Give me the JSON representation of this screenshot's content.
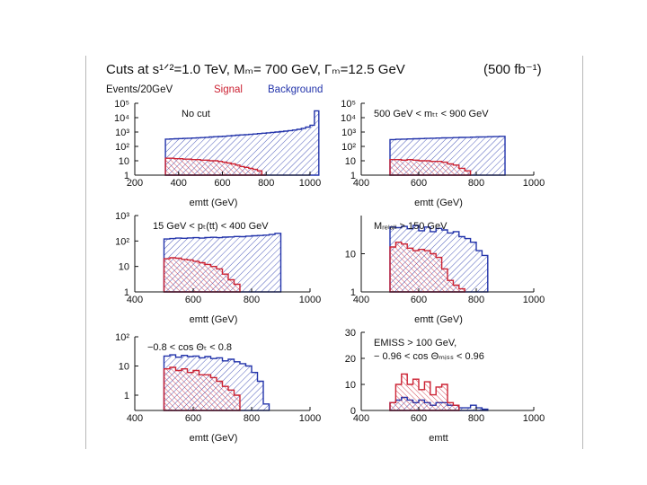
{
  "header": {
    "title": "Cuts at s¹ᐟ²=1.0 TeV,  Mₘ= 700 GeV, Γₘ=12.5 GeV",
    "luminosity": "(500 fb⁻¹)"
  },
  "legend": {
    "yunit": "Events/20GeV",
    "signal": "Signal",
    "background": "Background"
  },
  "colors": {
    "signal": "#cc2233",
    "background": "#2233aa",
    "axis": "#111111"
  },
  "chart_data": [
    {
      "type": "histogram",
      "scale": "log",
      "annotation": "No cut",
      "xlabel": "emtt (GeV)",
      "xlim": [
        200,
        1000
      ],
      "ylim": [
        1,
        100000
      ],
      "xticks": [
        "200",
        "400",
        "600",
        "800",
        "1000"
      ],
      "yticks": [
        "1",
        "10",
        "10²",
        "10³",
        "10⁴",
        "10⁵"
      ],
      "bin_width": 20,
      "background": {
        "x_start": 340,
        "values": [
          320,
          330,
          340,
          350,
          360,
          370,
          380,
          400,
          410,
          430,
          450,
          470,
          490,
          510,
          540,
          570,
          600,
          630,
          660,
          690,
          730,
          780,
          830,
          880,
          940,
          1000,
          1070,
          1150,
          1250,
          1380,
          1550,
          1800,
          2200,
          3000,
          30000
        ]
      },
      "signal": {
        "x_start": 340,
        "values": [
          15,
          15,
          14,
          14,
          13,
          13,
          12,
          12,
          11,
          11,
          10,
          10,
          9,
          8,
          7,
          6,
          5,
          4,
          3.5,
          3,
          2.5,
          2,
          1
        ]
      }
    },
    {
      "type": "histogram",
      "scale": "log",
      "annotation": "500 GeV < mₜₜ < 900 GeV",
      "xlabel": "emtt (GeV)",
      "xlim": [
        400,
        1000
      ],
      "ylim": [
        1,
        100000
      ],
      "xticks": [
        "400",
        "600",
        "800",
        "1000"
      ],
      "yticks": [
        "1",
        "10",
        "10²",
        "10³",
        "10⁴",
        "10⁵"
      ],
      "bin_width": 20,
      "background": {
        "x_start": 500,
        "values": [
          300,
          310,
          320,
          330,
          340,
          350,
          360,
          370,
          380,
          390,
          400,
          410,
          420,
          430,
          440,
          450,
          460,
          470,
          480,
          500
        ]
      },
      "signal": {
        "x_start": 500,
        "values": [
          12,
          12,
          11,
          12,
          11,
          10,
          10,
          9,
          9,
          8,
          6,
          5,
          3,
          2
        ]
      }
    },
    {
      "type": "histogram",
      "scale": "log",
      "annotation": "15 GeV < pₜ(tt) < 400 GeV",
      "xlabel": "emtt (GeV)",
      "xlim": [
        400,
        1000
      ],
      "ylim": [
        1,
        1000
      ],
      "xticks": [
        "400",
        "600",
        "800",
        "1000"
      ],
      "yticks": [
        "1",
        "10",
        "10²",
        "10³"
      ],
      "bin_width": 20,
      "background": {
        "x_start": 500,
        "values": [
          120,
          125,
          130,
          128,
          132,
          135,
          130,
          138,
          140,
          135,
          142,
          145,
          150,
          148,
          155,
          160,
          165,
          170,
          180,
          200
        ]
      },
      "signal": {
        "x_start": 500,
        "values": [
          20,
          22,
          21,
          19,
          18,
          16,
          14,
          12,
          10,
          8,
          5,
          3,
          2
        ]
      }
    },
    {
      "type": "histogram",
      "scale": "log",
      "annotation": "Mᵣₑₗₐₗₗ > 150 GeV",
      "xlabel": "emtt (GeV)",
      "xlim": [
        400,
        1000
      ],
      "ylim": [
        1,
        100
      ],
      "xticks": [
        "400",
        "600",
        "800",
        "1000"
      ],
      "yticks": [
        "1",
        "10"
      ],
      "bin_width": 20,
      "background": {
        "x_start": 500,
        "values": [
          50,
          48,
          52,
          45,
          55,
          40,
          50,
          38,
          46,
          42,
          35,
          38,
          28,
          25,
          20,
          12,
          9
        ]
      },
      "signal": {
        "x_start": 500,
        "values": [
          15,
          20,
          18,
          14,
          12,
          13,
          12,
          10,
          8,
          4,
          2,
          1.5,
          1.2
        ]
      }
    },
    {
      "type": "histogram",
      "scale": "log",
      "annotation": "−0.8 < cos Θₜ < 0.8",
      "xlabel": "emtt (GeV)",
      "xlim": [
        400,
        1000
      ],
      "ylim": [
        0.3,
        100
      ],
      "xticks": [
        "400",
        "600",
        "800",
        "1000"
      ],
      "yticks": [
        "1",
        "10",
        "10²"
      ],
      "bin_width": 20,
      "background": {
        "x_start": 500,
        "values": [
          22,
          24,
          20,
          23,
          21,
          22,
          19,
          21,
          18,
          19,
          15,
          17,
          14,
          12,
          10,
          6,
          3,
          0.5
        ]
      },
      "signal": {
        "x_start": 500,
        "values": [
          8,
          9,
          7,
          8,
          6,
          7,
          5,
          5,
          4,
          3,
          2,
          1.5,
          1
        ]
      }
    },
    {
      "type": "histogram",
      "scale": "linear",
      "annotation": "EMISS > 100 GeV,",
      "annotation2": "− 0.96 < cos Θₘᵢₛₛ < 0.96",
      "xlabel": "emtt",
      "xlim": [
        400,
        1000
      ],
      "ylim": [
        0,
        30
      ],
      "xticks": [
        "400",
        "600",
        "800",
        "1000"
      ],
      "yticks": [
        "0",
        "10",
        "20",
        "30"
      ],
      "bin_width": 20,
      "background": {
        "x_start": 500,
        "values": [
          3,
          4,
          5,
          4,
          3,
          4,
          3,
          2,
          3,
          3,
          2,
          2,
          1,
          1,
          2,
          1,
          0.5
        ]
      },
      "signal": {
        "x_start": 500,
        "values": [
          3,
          10,
          14,
          10,
          12,
          8,
          11,
          6,
          9,
          10,
          3,
          2
        ]
      }
    }
  ]
}
